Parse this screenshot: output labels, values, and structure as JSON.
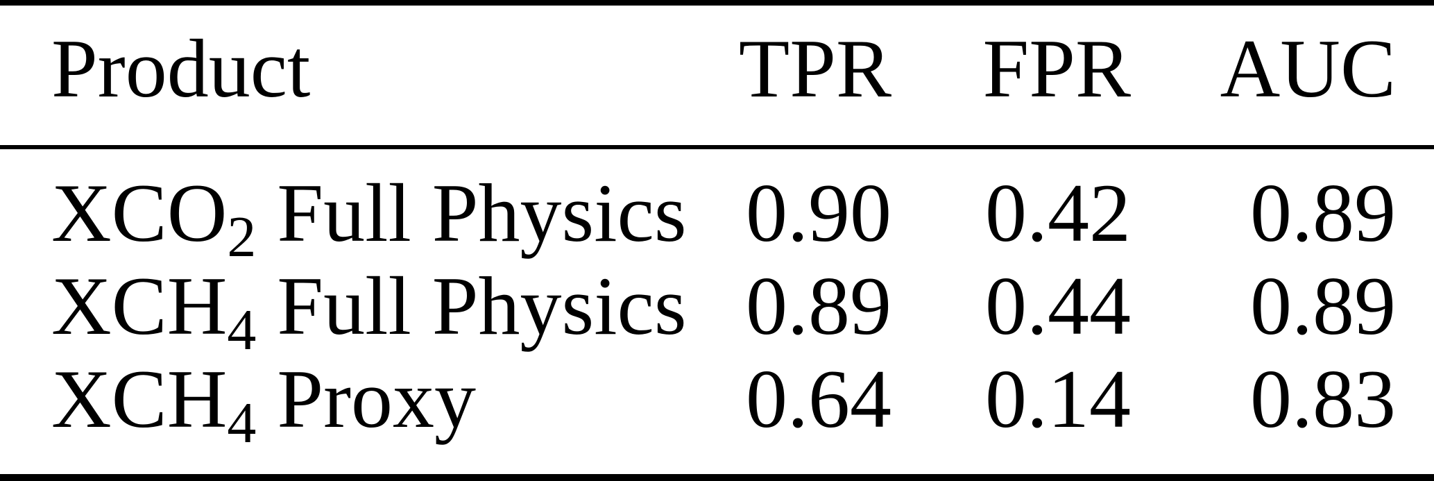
{
  "figure": {
    "background": "#ffffff",
    "text_color": "#000000",
    "rule_color": "#000000"
  },
  "chart_data": {
    "type": "table",
    "columns": [
      "Product",
      "TPR",
      "FPR",
      "AUC"
    ],
    "rows": [
      [
        "XCO2 Full Physics",
        0.9,
        0.42,
        0.89
      ],
      [
        "XCH4 Full Physics",
        0.89,
        0.44,
        0.89
      ],
      [
        "XCH4 Proxy",
        0.64,
        0.14,
        0.83
      ]
    ]
  },
  "table": {
    "headers": {
      "product": "Product",
      "tpr": "TPR",
      "fpr": "FPR",
      "auc": "AUC"
    },
    "rows": [
      {
        "product_prefix": "XCO",
        "product_sub": "2",
        "product_rest": " Full Physics",
        "tpr": "0.90",
        "fpr": "0.42",
        "auc": "0.89"
      },
      {
        "product_prefix": "XCH",
        "product_sub": "4",
        "product_rest": " Full Physics",
        "tpr": "0.89",
        "fpr": "0.44",
        "auc": "0.89"
      },
      {
        "product_prefix": "XCH",
        "product_sub": "4",
        "product_rest": " Proxy",
        "tpr": "0.64",
        "fpr": "0.14",
        "auc": "0.83"
      }
    ]
  }
}
